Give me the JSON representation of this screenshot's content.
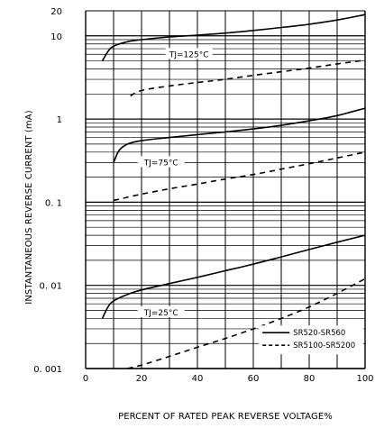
{
  "chart_data": {
    "type": "line",
    "xlabel": "PERCENT OF RATED PEAK REVERSE VOLTAGE%",
    "ylabel": "INSTANTANEOUS REVERSE CURRENT (mA)",
    "xlim": [
      0,
      100
    ],
    "ylim": [
      0.001,
      20
    ],
    "y_scale": "log",
    "grid": true,
    "x_ticks": [
      "0",
      "20",
      "40",
      "60",
      "80",
      "100"
    ],
    "y_ticks": [
      {
        "value": 0.001,
        "label": "0. 001"
      },
      {
        "value": 0.01,
        "label": "0. 01"
      },
      {
        "value": 0.1,
        "label": "0. 1"
      },
      {
        "value": 1,
        "label": "1"
      },
      {
        "value": 10,
        "label": "10"
      },
      {
        "value": 20,
        "label": "20"
      }
    ],
    "annotations": [
      "TJ=125°C",
      "TJ=75°C",
      "TJ=25°C"
    ],
    "legend_position": "bottom-right",
    "series": [
      {
        "name": "SR520-SR560",
        "style": "solid",
        "temp": "TJ=125°C",
        "x": [
          6,
          8,
          10,
          15,
          20,
          30,
          40,
          50,
          60,
          70,
          80,
          90,
          100
        ],
        "y": [
          5.0,
          6.5,
          7.5,
          8.5,
          9.0,
          9.7,
          10.2,
          10.8,
          11.6,
          12.6,
          13.8,
          15.5,
          18.0
        ]
      },
      {
        "name": "SR5100-SR5200",
        "style": "dashed",
        "temp": "TJ=125°C",
        "x": [
          16,
          20,
          30,
          40,
          50,
          60,
          70,
          80,
          90,
          100
        ],
        "y": [
          1.9,
          2.2,
          2.5,
          2.75,
          3.0,
          3.35,
          3.7,
          4.1,
          4.6,
          5.1
        ]
      },
      {
        "name": "SR520-SR560",
        "style": "solid",
        "temp": "TJ=75°C",
        "x": [
          10,
          12,
          15,
          20,
          30,
          40,
          50,
          60,
          70,
          80,
          90,
          100
        ],
        "y": [
          0.3,
          0.42,
          0.5,
          0.55,
          0.6,
          0.65,
          0.7,
          0.76,
          0.84,
          0.95,
          1.1,
          1.35
        ]
      },
      {
        "name": "SR5100-SR5200",
        "style": "dashed",
        "temp": "TJ=75°C",
        "x": [
          10,
          20,
          30,
          40,
          50,
          60,
          70,
          80,
          90,
          100
        ],
        "y": [
          0.105,
          0.125,
          0.145,
          0.165,
          0.19,
          0.215,
          0.25,
          0.29,
          0.34,
          0.4
        ]
      },
      {
        "name": "SR520-SR560",
        "style": "solid",
        "temp": "TJ=25°C",
        "x": [
          6,
          8,
          10,
          15,
          20,
          30,
          40,
          50,
          60,
          70,
          80,
          90,
          100
        ],
        "y": [
          0.004,
          0.0055,
          0.0065,
          0.0078,
          0.0088,
          0.0105,
          0.0125,
          0.015,
          0.018,
          0.022,
          0.027,
          0.033,
          0.04
        ]
      },
      {
        "name": "SR5100-SR5200",
        "style": "dashed",
        "temp": "TJ=25°C",
        "x": [
          15,
          20,
          30,
          40,
          50,
          60,
          70,
          80,
          90,
          100
        ],
        "y": [
          0.001,
          0.0011,
          0.0014,
          0.0018,
          0.0023,
          0.003,
          0.004,
          0.0055,
          0.008,
          0.012
        ]
      }
    ],
    "legend": [
      {
        "label": "SR520-SR560",
        "style": "solid"
      },
      {
        "label": "SR5100-SR5200",
        "style": "dashed"
      }
    ]
  }
}
